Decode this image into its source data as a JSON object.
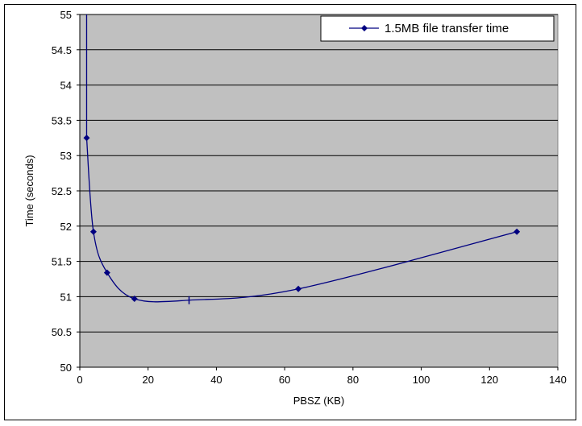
{
  "chart_data": {
    "type": "line",
    "title": "",
    "xlabel": "PBSZ (KB)",
    "ylabel": "Time (seconds)",
    "xlim": [
      0,
      140
    ],
    "ylim": [
      50,
      55
    ],
    "x_ticks": [
      0,
      20,
      40,
      60,
      80,
      100,
      120,
      140
    ],
    "y_ticks": [
      50,
      50.5,
      51,
      51.5,
      52,
      52.5,
      53,
      53.5,
      54,
      54.5,
      55
    ],
    "grid": "horizontal",
    "legend_position": "top-right",
    "series": [
      {
        "name": "1.5MB file transfer time",
        "color": "#000080",
        "marker": "diamond",
        "x": [
          2,
          4,
          8,
          16,
          32,
          64,
          128
        ],
        "y": [
          53.25,
          51.92,
          51.34,
          50.97,
          50.95,
          51.11,
          51.92
        ]
      }
    ],
    "plot_background": "#c0c0c0"
  }
}
